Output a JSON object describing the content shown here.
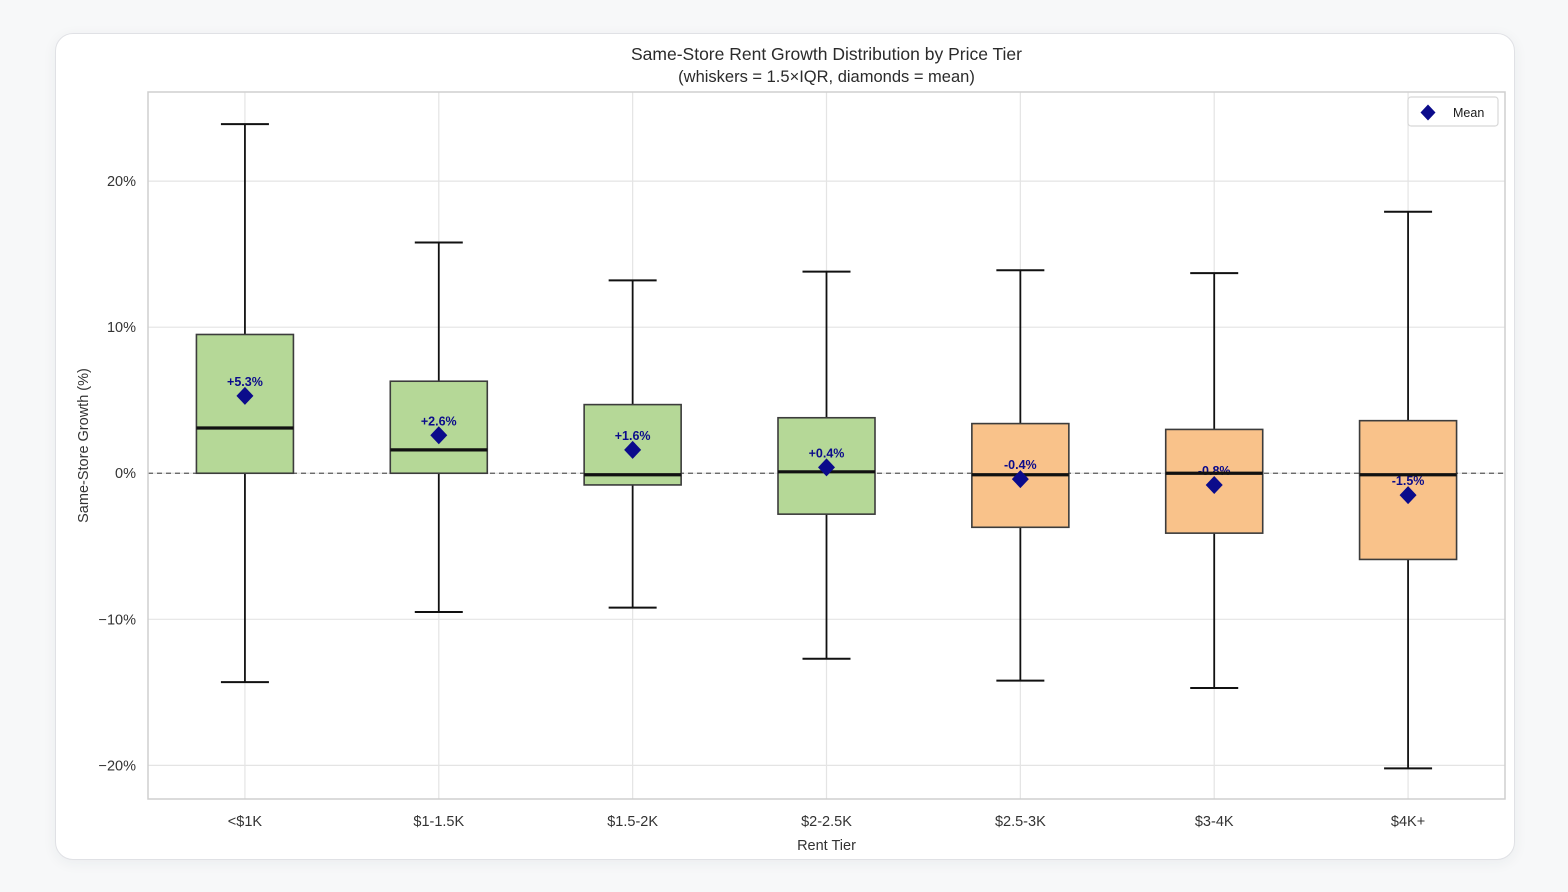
{
  "page": {
    "title": "Same-Store Rent Growth Distribution by Price Tier",
    "subtitle": "(whiskers = 1.5×IQR, diamonds = mean)"
  },
  "chart_data": {
    "type": "box",
    "title": "Same-Store Rent Growth Distribution by Price Tier",
    "subtitle": "(whiskers = 1.5×IQR, diamonds = mean)",
    "xlabel": "Rent Tier",
    "ylabel": "Same-Store Growth (%)",
    "ylim": [
      -22.3,
      26.1
    ],
    "grid": true,
    "zero_line": {
      "value": 0,
      "style": "dashed"
    },
    "yticks": [
      {
        "value": 20,
        "label": "20%"
      },
      {
        "value": 10,
        "label": "10%"
      },
      {
        "value": 0,
        "label": "0%"
      },
      {
        "value": -10,
        "label": "−10%"
      },
      {
        "value": -20,
        "label": "−20%"
      }
    ],
    "categories": [
      "<$1K",
      "$1-1.5K",
      "$1.5-2K",
      "$2-2.5K",
      "$2.5-3K",
      "$3-4K",
      "$4K+"
    ],
    "boxes": [
      {
        "tier": "<$1K",
        "whisker_low": -14.3,
        "q1": 0.0,
        "median": 3.1,
        "q3": 9.5,
        "whisker_high": 23.9,
        "mean": 5.3,
        "mean_label": "+5.3%",
        "fill": "green"
      },
      {
        "tier": "$1-1.5K",
        "whisker_low": -9.5,
        "q1": 0.0,
        "median": 1.6,
        "q3": 6.3,
        "whisker_high": 15.8,
        "mean": 2.6,
        "mean_label": "+2.6%",
        "fill": "green"
      },
      {
        "tier": "$1.5-2K",
        "whisker_low": -9.2,
        "q1": -0.8,
        "median": -0.1,
        "q3": 4.7,
        "whisker_high": 13.2,
        "mean": 1.6,
        "mean_label": "+1.6%",
        "fill": "green"
      },
      {
        "tier": "$2-2.5K",
        "whisker_low": -12.7,
        "q1": -2.8,
        "median": 0.1,
        "q3": 3.8,
        "whisker_high": 13.8,
        "mean": 0.4,
        "mean_label": "+0.4%",
        "fill": "green"
      },
      {
        "tier": "$2.5-3K",
        "whisker_low": -14.2,
        "q1": -3.7,
        "median": -0.1,
        "q3": 3.4,
        "whisker_high": 13.9,
        "mean": -0.4,
        "mean_label": "-0.4%",
        "fill": "orange"
      },
      {
        "tier": "$3-4K",
        "whisker_low": -14.7,
        "q1": -4.1,
        "median": 0.0,
        "q3": 3.0,
        "whisker_high": 13.7,
        "mean": -0.8,
        "mean_label": "-0.8%",
        "fill": "orange"
      },
      {
        "tier": "$4K+",
        "whisker_low": -20.2,
        "q1": -5.9,
        "median": -0.1,
        "q3": 3.6,
        "whisker_high": 17.9,
        "mean": -1.5,
        "mean_label": "-1.5%",
        "fill": "orange"
      }
    ],
    "legend": {
      "label": "Mean",
      "marker": "diamond",
      "position": "upper-right"
    },
    "colors": {
      "green": "#b5d897",
      "orange": "#f9c28a",
      "mean": "#0b0b8b",
      "box_edge": "#3c3c3c",
      "line": "#111111",
      "grid": "#e4e4e4",
      "plot_border": "#cfcfcf",
      "zero_line": "#5a5a5a",
      "tick_text": "#333333"
    }
  }
}
